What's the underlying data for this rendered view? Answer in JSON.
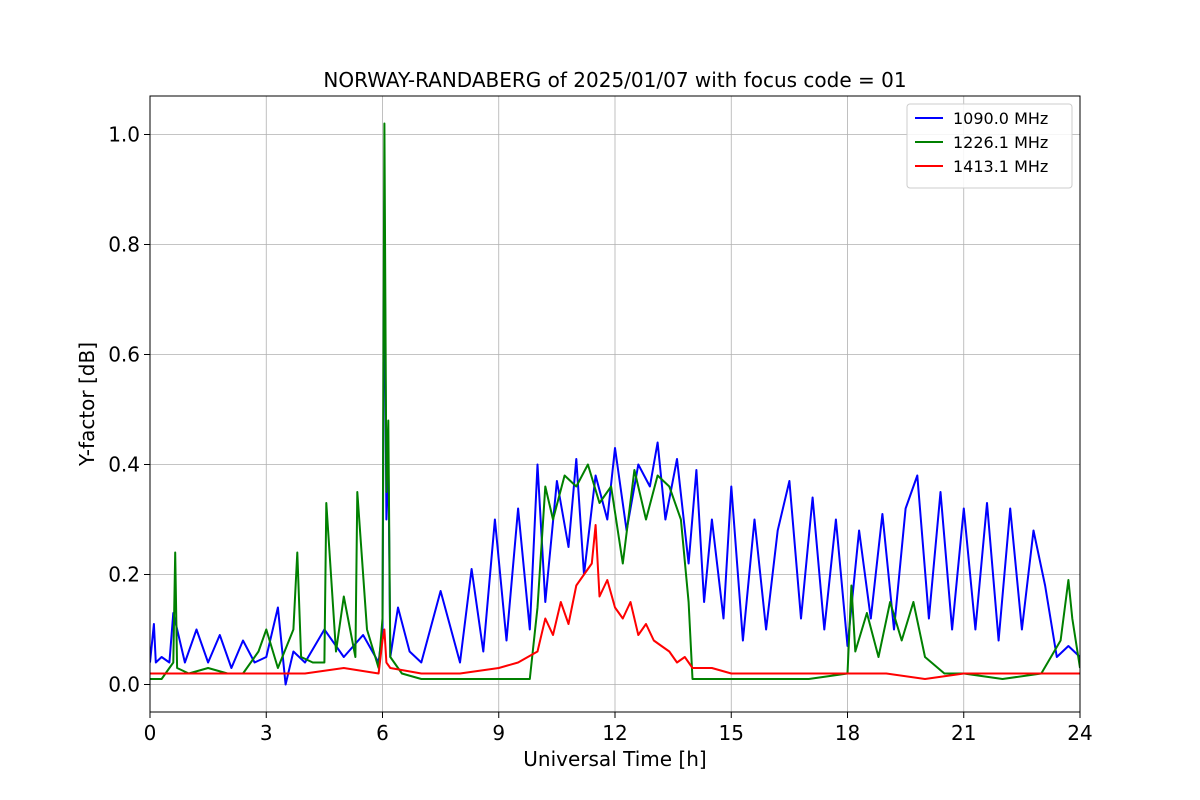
{
  "chart_data": {
    "type": "line",
    "title": "NORWAY-RANDABERG of 2025/01/07 with focus code = 01",
    "xlabel": "Universal Time [h]",
    "ylabel": "Y-factor [dB]",
    "xlim": [
      0,
      24
    ],
    "ylim": [
      -0.05,
      1.07
    ],
    "xticks": [
      0,
      3,
      6,
      9,
      12,
      15,
      18,
      21,
      24
    ],
    "xtick_labels": [
      "0",
      "3",
      "6",
      "9",
      "12",
      "15",
      "18",
      "21",
      "24"
    ],
    "yticks": [
      0.0,
      0.2,
      0.4,
      0.6,
      0.8,
      1.0
    ],
    "ytick_labels": [
      "0.0",
      "0.2",
      "0.4",
      "0.6",
      "0.8",
      "1.0"
    ],
    "grid": true,
    "legend_position": "top-right",
    "series": [
      {
        "name": "1090.0 MHz",
        "color": "#0000ff",
        "x": [
          0,
          0.1,
          0.15,
          0.3,
          0.5,
          0.6,
          0.9,
          1.2,
          1.5,
          1.8,
          2.1,
          2.4,
          2.7,
          3.0,
          3.3,
          3.5,
          3.7,
          4.0,
          4.5,
          5.0,
          5.5,
          5.9,
          6.0,
          6.05,
          6.1,
          6.15,
          6.2,
          6.4,
          6.7,
          7.0,
          7.5,
          8.0,
          8.3,
          8.6,
          8.9,
          9.2,
          9.5,
          9.8,
          10.0,
          10.2,
          10.5,
          10.8,
          11.0,
          11.2,
          11.5,
          11.8,
          12.0,
          12.3,
          12.6,
          12.9,
          13.1,
          13.3,
          13.6,
          13.9,
          14.1,
          14.3,
          14.5,
          14.8,
          15.0,
          15.3,
          15.6,
          15.9,
          16.2,
          16.5,
          16.8,
          17.1,
          17.4,
          17.7,
          18.0,
          18.3,
          18.6,
          18.9,
          19.2,
          19.5,
          19.8,
          20.1,
          20.4,
          20.7,
          21.0,
          21.3,
          21.6,
          21.9,
          22.2,
          22.5,
          22.8,
          23.1,
          23.4,
          23.7,
          24.0
        ],
        "y": [
          0.04,
          0.11,
          0.04,
          0.05,
          0.04,
          0.13,
          0.04,
          0.1,
          0.04,
          0.09,
          0.03,
          0.08,
          0.04,
          0.05,
          0.14,
          0.0,
          0.06,
          0.04,
          0.1,
          0.05,
          0.09,
          0.04,
          0.1,
          0.88,
          0.3,
          0.42,
          0.05,
          0.14,
          0.06,
          0.04,
          0.17,
          0.04,
          0.21,
          0.06,
          0.3,
          0.08,
          0.32,
          0.1,
          0.4,
          0.15,
          0.37,
          0.25,
          0.41,
          0.2,
          0.38,
          0.3,
          0.43,
          0.28,
          0.4,
          0.36,
          0.44,
          0.3,
          0.41,
          0.22,
          0.39,
          0.15,
          0.3,
          0.12,
          0.36,
          0.08,
          0.3,
          0.1,
          0.28,
          0.37,
          0.12,
          0.34,
          0.1,
          0.3,
          0.07,
          0.28,
          0.12,
          0.31,
          0.1,
          0.32,
          0.38,
          0.12,
          0.35,
          0.1,
          0.32,
          0.1,
          0.33,
          0.08,
          0.32,
          0.1,
          0.28,
          0.18,
          0.05,
          0.07,
          0.05
        ]
      },
      {
        "name": "1226.1 MHz",
        "color": "#008000",
        "x": [
          0,
          0.3,
          0.6,
          0.65,
          0.7,
          1.0,
          1.5,
          2.0,
          2.4,
          2.8,
          3.0,
          3.3,
          3.7,
          3.8,
          3.9,
          4.2,
          4.5,
          4.55,
          4.8,
          5.0,
          5.3,
          5.35,
          5.6,
          5.9,
          6.0,
          6.05,
          6.1,
          6.15,
          6.2,
          6.5,
          7.0,
          8.0,
          9.0,
          9.8,
          10.0,
          10.2,
          10.4,
          10.7,
          11.0,
          11.3,
          11.6,
          11.9,
          12.2,
          12.5,
          12.8,
          13.1,
          13.4,
          13.7,
          13.9,
          14.0,
          14.5,
          15.0,
          16.0,
          17.0,
          18.0,
          18.1,
          18.2,
          18.5,
          18.8,
          19.1,
          19.4,
          19.7,
          20.0,
          20.5,
          21.0,
          22.0,
          23.0,
          23.5,
          23.7,
          23.8,
          24.0
        ],
        "y": [
          0.01,
          0.01,
          0.04,
          0.24,
          0.03,
          0.02,
          0.03,
          0.02,
          0.02,
          0.06,
          0.1,
          0.03,
          0.1,
          0.24,
          0.05,
          0.04,
          0.04,
          0.33,
          0.06,
          0.16,
          0.05,
          0.35,
          0.1,
          0.03,
          0.12,
          1.02,
          0.35,
          0.48,
          0.05,
          0.02,
          0.01,
          0.01,
          0.01,
          0.01,
          0.14,
          0.36,
          0.3,
          0.38,
          0.36,
          0.4,
          0.33,
          0.36,
          0.22,
          0.39,
          0.3,
          0.38,
          0.36,
          0.3,
          0.15,
          0.01,
          0.01,
          0.01,
          0.01,
          0.01,
          0.02,
          0.18,
          0.06,
          0.13,
          0.05,
          0.15,
          0.08,
          0.15,
          0.05,
          0.02,
          0.02,
          0.01,
          0.02,
          0.08,
          0.19,
          0.12,
          0.03
        ]
      },
      {
        "name": "1413.1 MHz",
        "color": "#ff0000",
        "x": [
          0,
          1.0,
          2.0,
          3.0,
          4.0,
          5.0,
          5.9,
          6.0,
          6.05,
          6.1,
          6.2,
          7.0,
          8.0,
          9.0,
          9.5,
          10.0,
          10.2,
          10.4,
          10.6,
          10.8,
          11.0,
          11.2,
          11.4,
          11.5,
          11.6,
          11.8,
          12.0,
          12.2,
          12.4,
          12.6,
          12.8,
          13.0,
          13.2,
          13.4,
          13.6,
          13.8,
          14.0,
          14.5,
          15.0,
          16.0,
          17.0,
          18.0,
          19.0,
          20.0,
          21.0,
          22.0,
          23.0,
          24.0
        ],
        "y": [
          0.02,
          0.02,
          0.02,
          0.02,
          0.02,
          0.03,
          0.02,
          0.08,
          0.1,
          0.04,
          0.03,
          0.02,
          0.02,
          0.03,
          0.04,
          0.06,
          0.12,
          0.09,
          0.15,
          0.11,
          0.18,
          0.2,
          0.22,
          0.29,
          0.16,
          0.19,
          0.14,
          0.12,
          0.15,
          0.09,
          0.11,
          0.08,
          0.07,
          0.06,
          0.04,
          0.05,
          0.03,
          0.03,
          0.02,
          0.02,
          0.02,
          0.02,
          0.02,
          0.01,
          0.02,
          0.02,
          0.02,
          0.02
        ]
      }
    ]
  }
}
